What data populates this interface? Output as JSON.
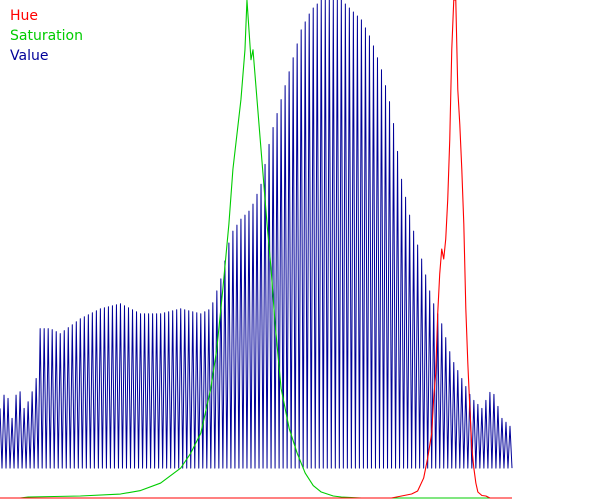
{
  "chart_data": {
    "type": "line",
    "xlim": [
      0,
      255
    ],
    "ylim": [
      0,
      1
    ],
    "legend_placement": "top-left",
    "grid": false,
    "series": [
      {
        "name": "Hue",
        "color": "#ff0000",
        "style": "smooth",
        "points": [
          [
            0,
            0
          ],
          [
            150,
            0
          ],
          [
            195,
            0
          ],
          [
            200,
            0.004
          ],
          [
            205,
            0.008
          ],
          [
            208,
            0.014
          ],
          [
            211,
            0.04
          ],
          [
            213,
            0.08
          ],
          [
            215,
            0.13
          ],
          [
            216,
            0.2
          ],
          [
            217,
            0.25
          ],
          [
            218,
            0.37
          ],
          [
            219,
            0.45
          ],
          [
            220,
            0.5
          ],
          [
            221,
            0.48
          ],
          [
            222,
            0.52
          ],
          [
            223,
            0.6
          ],
          [
            224,
            0.72
          ],
          [
            225,
            0.9
          ],
          [
            226,
            1.0
          ],
          [
            227,
            1.0
          ],
          [
            228,
            0.82
          ],
          [
            229,
            0.75
          ],
          [
            230,
            0.66
          ],
          [
            231,
            0.55
          ],
          [
            232,
            0.38
          ],
          [
            233,
            0.27
          ],
          [
            234,
            0.18
          ],
          [
            235,
            0.1
          ],
          [
            236,
            0.06
          ],
          [
            237,
            0.03
          ],
          [
            238,
            0.012
          ],
          [
            240,
            0.005
          ],
          [
            242,
            0.004
          ],
          [
            244,
            0.0
          ],
          [
            255,
            0
          ]
        ]
      },
      {
        "name": "Saturation",
        "color": "#00cc00",
        "style": "smooth",
        "points": [
          [
            0,
            0
          ],
          [
            10,
            0
          ],
          [
            14,
            0.002
          ],
          [
            40,
            0.004
          ],
          [
            60,
            0.008
          ],
          [
            70,
            0.015
          ],
          [
            80,
            0.03
          ],
          [
            90,
            0.06
          ],
          [
            95,
            0.09
          ],
          [
            100,
            0.13
          ],
          [
            105,
            0.22
          ],
          [
            108,
            0.3
          ],
          [
            111,
            0.42
          ],
          [
            114,
            0.55
          ],
          [
            116,
            0.66
          ],
          [
            118,
            0.73
          ],
          [
            120,
            0.8
          ],
          [
            122,
            0.9
          ],
          [
            123,
            1.0
          ],
          [
            124,
            0.94
          ],
          [
            125,
            0.88
          ],
          [
            126,
            0.9
          ],
          [
            127,
            0.85
          ],
          [
            128,
            0.8
          ],
          [
            130,
            0.7
          ],
          [
            133,
            0.55
          ],
          [
            135,
            0.46
          ],
          [
            137,
            0.35
          ],
          [
            140,
            0.22
          ],
          [
            144,
            0.14
          ],
          [
            148,
            0.09
          ],
          [
            152,
            0.05
          ],
          [
            156,
            0.025
          ],
          [
            160,
            0.012
          ],
          [
            166,
            0.004
          ],
          [
            170,
            0.002
          ],
          [
            180,
            0.0
          ],
          [
            255,
            0
          ]
        ]
      },
      {
        "name": "Value",
        "color": "#000099",
        "style": "comb",
        "comb_floor": 0.06,
        "comb_period": 2.0,
        "envelope": [
          [
            0,
            0.18
          ],
          [
            3,
            0.22
          ],
          [
            6,
            0.16
          ],
          [
            9,
            0.23
          ],
          [
            12,
            0.18
          ],
          [
            15,
            0.2
          ],
          [
            18,
            0.24
          ],
          [
            20,
            0.34
          ],
          [
            25,
            0.34
          ],
          [
            30,
            0.33
          ],
          [
            40,
            0.36
          ],
          [
            50,
            0.38
          ],
          [
            60,
            0.39
          ],
          [
            70,
            0.37
          ],
          [
            80,
            0.37
          ],
          [
            90,
            0.38
          ],
          [
            100,
            0.37
          ],
          [
            105,
            0.38
          ],
          [
            110,
            0.44
          ],
          [
            115,
            0.53
          ],
          [
            120,
            0.56
          ],
          [
            125,
            0.58
          ],
          [
            130,
            0.63
          ],
          [
            135,
            0.73
          ],
          [
            140,
            0.8
          ],
          [
            145,
            0.87
          ],
          [
            150,
            0.94
          ],
          [
            155,
            0.98
          ],
          [
            160,
            1.0
          ],
          [
            165,
            1.0
          ],
          [
            170,
            1.0
          ],
          [
            175,
            0.98
          ],
          [
            180,
            0.96
          ],
          [
            185,
            0.92
          ],
          [
            190,
            0.86
          ],
          [
            195,
            0.78
          ],
          [
            200,
            0.64
          ],
          [
            205,
            0.55
          ],
          [
            210,
            0.48
          ],
          [
            215,
            0.4
          ],
          [
            220,
            0.35
          ],
          [
            225,
            0.28
          ],
          [
            230,
            0.24
          ],
          [
            235,
            0.2
          ],
          [
            240,
            0.18
          ],
          [
            245,
            0.22
          ],
          [
            250,
            0.16
          ],
          [
            255,
            0.14
          ]
        ]
      }
    ],
    "legend": [
      "Hue",
      "Saturation",
      "Value"
    ]
  }
}
